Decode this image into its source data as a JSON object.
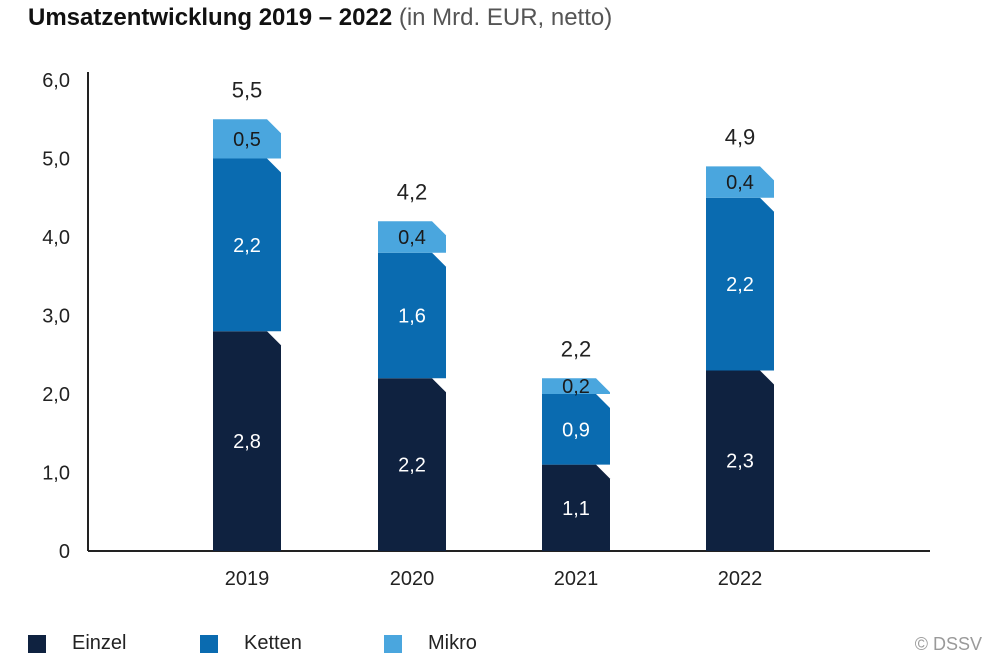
{
  "title": {
    "main": "Umsatzentwicklung 2019 – 2022",
    "sub": "(in Mrd. EUR, netto)"
  },
  "copyright": "© DSSV",
  "chart_data": {
    "type": "bar",
    "stacked": true,
    "categories": [
      "2019",
      "2020",
      "2021",
      "2022"
    ],
    "series": [
      {
        "name": "Einzel",
        "color": "#0f2240",
        "values": [
          2.8,
          2.2,
          1.1,
          2.3
        ],
        "labels": [
          "2,8",
          "2,2",
          "1,1",
          "2,3"
        ]
      },
      {
        "name": "Ketten",
        "color": "#0a6bb0",
        "values": [
          2.2,
          1.6,
          0.9,
          2.2
        ],
        "labels": [
          "2,2",
          "1,6",
          "0,9",
          "2,2"
        ]
      },
      {
        "name": "Mikro",
        "color": "#4aa6de",
        "values": [
          0.5,
          0.4,
          0.2,
          0.4
        ],
        "labels": [
          "0,5",
          "0,4",
          "0,2",
          "0,4"
        ]
      }
    ],
    "totals": [
      5.5,
      4.2,
      2.2,
      4.9
    ],
    "total_labels": [
      "5,5",
      "4,2",
      "2,2",
      "4,9"
    ],
    "ylim": [
      0,
      6
    ],
    "yticks": [
      0,
      1,
      2,
      3,
      4,
      5,
      6
    ],
    "ytick_labels": [
      "0",
      "1,0",
      "2,0",
      "3,0",
      "4,0",
      "5,0",
      "6,0"
    ],
    "grid": false,
    "legend_position": "bottom-left"
  }
}
